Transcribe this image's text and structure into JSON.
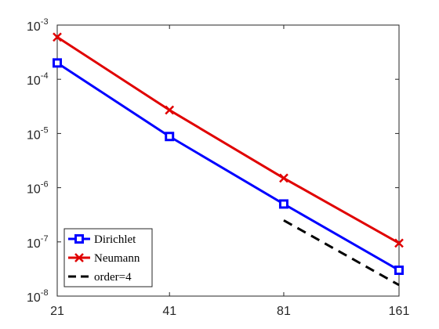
{
  "chart_data": {
    "type": "line",
    "x_scale": "log",
    "y_scale": "log",
    "xlim": [
      21,
      161
    ],
    "ylim": [
      1e-08,
      0.001
    ],
    "x_ticks": [
      {
        "value": 21,
        "label": "21"
      },
      {
        "value": 41,
        "label": "41"
      },
      {
        "value": 81,
        "label": "81"
      },
      {
        "value": 161,
        "label": "161"
      }
    ],
    "y_ticks": [
      {
        "value": 1e-08,
        "base": "10",
        "exp": "-8"
      },
      {
        "value": 1e-07,
        "base": "10",
        "exp": "-7"
      },
      {
        "value": 1e-06,
        "base": "10",
        "exp": "-6"
      },
      {
        "value": 1e-05,
        "base": "10",
        "exp": "-5"
      },
      {
        "value": 0.0001,
        "base": "10",
        "exp": "-4"
      },
      {
        "value": 0.001,
        "base": "10",
        "exp": "-3"
      }
    ],
    "grid": false,
    "legend_position": "bottom-left",
    "series": [
      {
        "name": "Dirichlet",
        "color": "#0000ff",
        "marker": "square",
        "line_style": "solid",
        "x": [
          21,
          41,
          81,
          161
        ],
        "y": [
          0.0002,
          8.8e-06,
          5e-07,
          3e-08
        ]
      },
      {
        "name": "Neumann",
        "color": "#e00000",
        "marker": "cross",
        "line_style": "solid",
        "x": [
          21,
          41,
          81,
          161
        ],
        "y": [
          0.0006,
          2.7e-05,
          1.5e-06,
          9.5e-08
        ]
      },
      {
        "name": "order=4",
        "color": "#000000",
        "marker": "none",
        "line_style": "dashed",
        "x": [
          81,
          161
        ],
        "y": [
          2.5e-07,
          1.6e-08
        ]
      }
    ]
  }
}
